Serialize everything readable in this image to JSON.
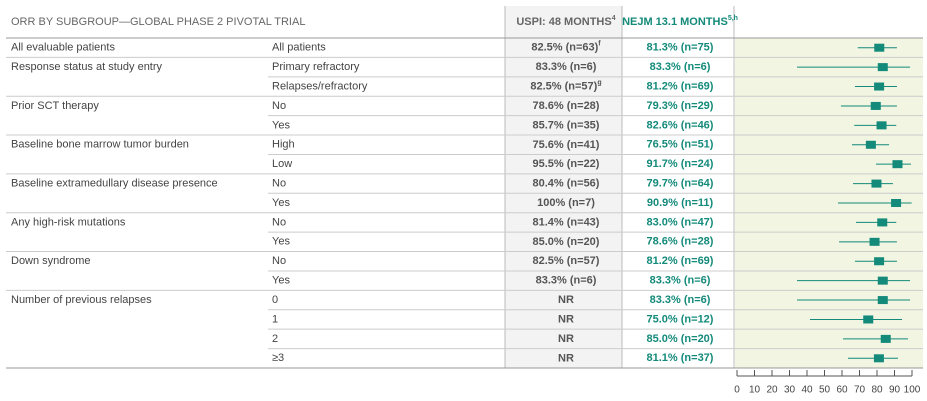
{
  "table": {
    "header": {
      "title": "ORR BY SUBGROUP—GLOBAL PHASE 2 PIVOTAL TRIAL",
      "uspi": "USPI: 48 MONTHS",
      "uspi_sup": "4",
      "nejm": "NEJM 13.1 MONTHS",
      "nejm_sup": "5,h"
    },
    "rows": [
      {
        "group": "All evaluable patients",
        "subgroup": "All patients",
        "uspi": "82.5% (n=63)",
        "uspi_sup": "f",
        "nejm": "81.3% (n=75)"
      },
      {
        "group": "Response status at study entry",
        "subgroup": "Primary refractory",
        "uspi": "83.3% (n=6)",
        "nejm": "83.3% (n=6)"
      },
      {
        "subgroup": "Relapses/refractory",
        "uspi": "82.5% (n=57)",
        "uspi_sup": "g",
        "nejm": "81.2% (n=69)"
      },
      {
        "group": "Prior SCT therapy",
        "subgroup": "No",
        "uspi": "78.6% (n=28)",
        "nejm": "79.3% (n=29)"
      },
      {
        "subgroup": "Yes",
        "uspi": "85.7% (n=35)",
        "nejm": "82.6% (n=46)"
      },
      {
        "group": "Baseline bone marrow tumor burden",
        "subgroup": "High",
        "uspi": "75.6% (n=41)",
        "nejm": "76.5% (n=51)"
      },
      {
        "subgroup": "Low",
        "uspi": "95.5% (n=22)",
        "nejm": "91.7% (n=24)"
      },
      {
        "group": "Baseline extramedullary disease presence",
        "subgroup": "No",
        "uspi": "80.4% (n=56)",
        "nejm": "79.7% (n=64)"
      },
      {
        "subgroup": "Yes",
        "uspi": "100% (n=7)",
        "nejm": "90.9% (n=11)"
      },
      {
        "group": "Any high-risk mutations",
        "subgroup": "No",
        "uspi": "81.4% (n=43)",
        "nejm": "83.0% (n=47)"
      },
      {
        "subgroup": "Yes",
        "uspi": "85.0% (n=20)",
        "nejm": "78.6% (n=28)"
      },
      {
        "group": "Down syndrome",
        "subgroup": "No",
        "uspi": "82.5% (n=57)",
        "nejm": "81.2% (n=69)"
      },
      {
        "subgroup": "Yes",
        "uspi": "83.3% (n=6)",
        "nejm": "83.3% (n=6)"
      },
      {
        "group": "Number of previous relapses",
        "subgroup": "0",
        "uspi": "NR",
        "nejm": "83.3% (n=6)"
      },
      {
        "subgroup": "1",
        "uspi": "NR",
        "nejm": "75.0% (n=12)"
      },
      {
        "subgroup": "2",
        "uspi": "NR",
        "nejm": "85.0% (n=20)"
      },
      {
        "subgroup": "≥3",
        "uspi": "NR",
        "nejm": "81.1% (n=37)"
      }
    ]
  },
  "chart_data": {
    "type": "forest",
    "color": "#138a7a",
    "values": [
      81.3,
      83.3,
      81.2,
      79.3,
      82.6,
      76.5,
      91.7,
      79.7,
      90.9,
      83.0,
      78.6,
      81.2,
      83.3,
      83.3,
      75.0,
      85.0,
      81.1
    ],
    "ci_low": [
      69,
      34.3,
      67.4,
      59.4,
      67,
      65.7,
      79.4,
      66.3,
      57.7,
      68,
      58.3,
      67.4,
      34.3,
      34.3,
      41.7,
      60.6,
      63.4
    ],
    "ci_high": [
      91.4,
      98.9,
      91.4,
      91.4,
      91,
      86.9,
      99.4,
      89.1,
      99.8,
      91,
      91.4,
      91.4,
      98.9,
      98.9,
      94.3,
      97.7,
      92
    ],
    "xlim": [
      0,
      100
    ],
    "xticks": [
      0,
      10,
      20,
      30,
      40,
      50,
      60,
      70,
      80,
      90,
      100
    ]
  }
}
